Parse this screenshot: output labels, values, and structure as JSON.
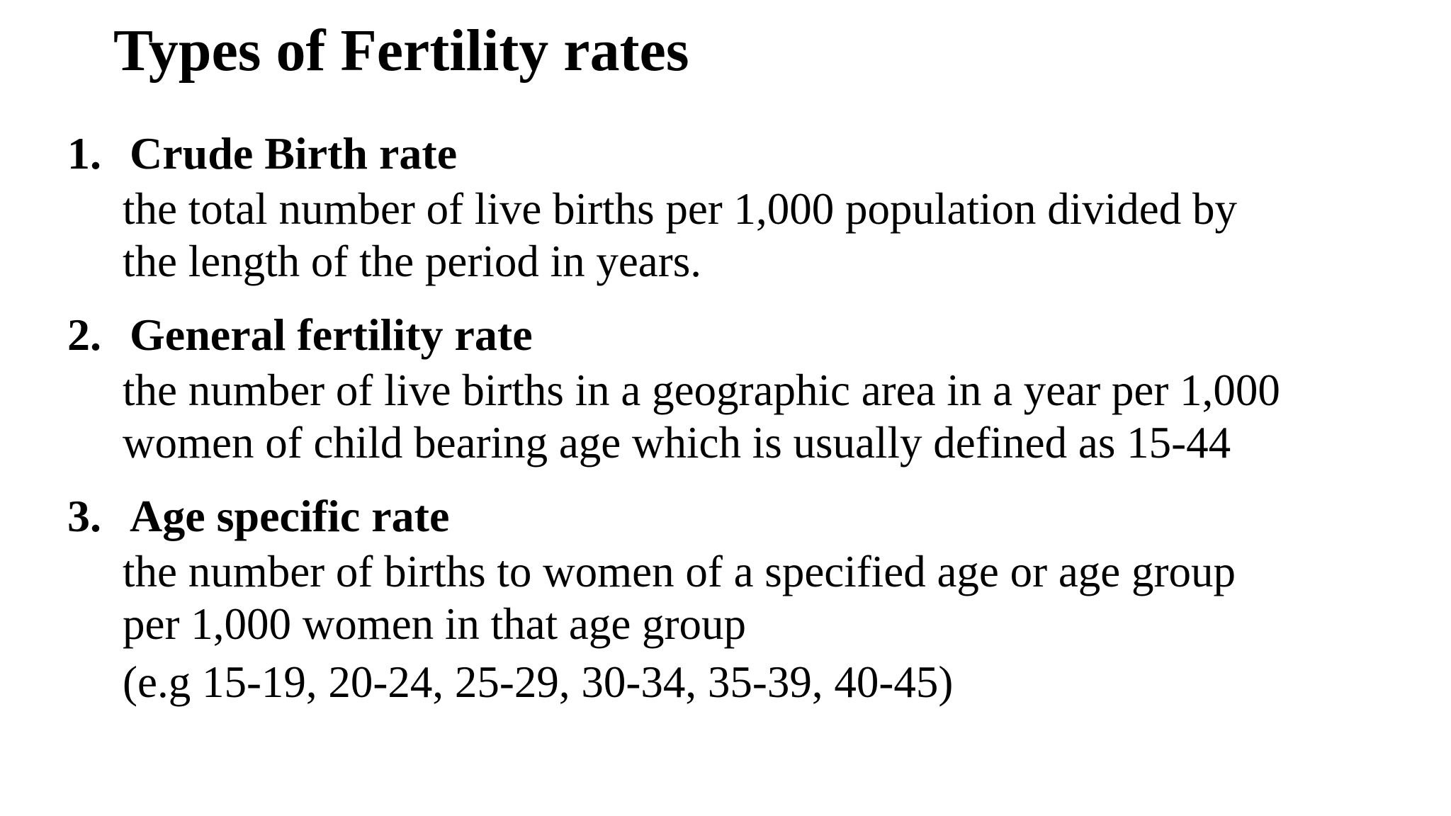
{
  "title": "Types of Fertility rates",
  "items": [
    {
      "number": "1.",
      "heading": "Crude Birth rate",
      "lines": [
        "the total number of live births per 1,000 population divided by",
        "the length of the period in years."
      ]
    },
    {
      "number": "2.",
      "heading": "General fertility rate",
      "lines": [
        "the number of live births in a geographic area in a year per 1,000",
        "women of child bearing age which is usually defined as 15-44"
      ]
    },
    {
      "number": "3.",
      "heading": "Age specific rate",
      "lines": [
        "the number of births to women of a specified age or age group",
        "per 1,000 women in that age group"
      ],
      "example": "(e.g 15-19, 20-24, 25-29, 30-34, 35-39, 40-45)"
    }
  ]
}
